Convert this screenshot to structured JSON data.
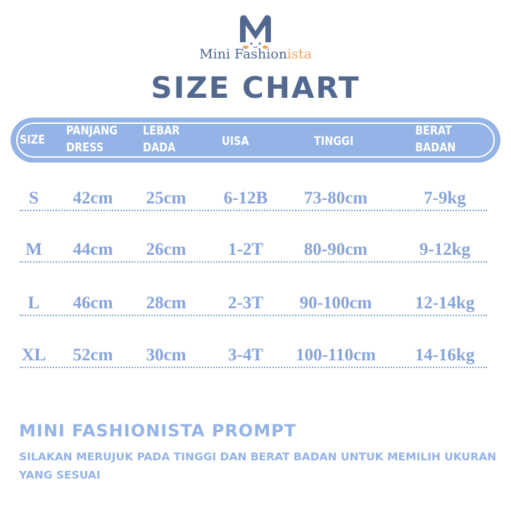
{
  "brand": {
    "name_main": "Mini Fashion",
    "name_accent": "ista",
    "colors": {
      "primary": "#4a6590",
      "accent": "#f0a35e",
      "chart": "#94b3e6"
    }
  },
  "title": "SIZE CHART",
  "header": {
    "columns": [
      {
        "line1": "SIZE",
        "line2": ""
      },
      {
        "line1": "PANJANG",
        "line2": "DRESS"
      },
      {
        "line1": "LEBAR",
        "line2": "DADA"
      },
      {
        "line1": "UISA",
        "line2": ""
      },
      {
        "line1": "TINGGI",
        "line2": ""
      },
      {
        "line1": "BERAT",
        "line2": "BADAN"
      }
    ]
  },
  "rows": [
    [
      "S",
      "42cm",
      "25cm",
      "6-12B",
      "73-80cm",
      "7-9kg"
    ],
    [
      "M",
      "44cm",
      "26cm",
      "1-2T",
      "80-90cm",
      "9-12kg"
    ],
    [
      "L",
      "46cm",
      "28cm",
      "2-3T",
      "90-100cm",
      "12-14kg"
    ],
    [
      "XL",
      "52cm",
      "30cm",
      "3-4T",
      "100-110cm",
      "14-16kg"
    ]
  ],
  "prompt": {
    "title": "MINI FASHIONISTA PROMPT",
    "text": "SILAKAN MERUJUK PADA TINGGI DAN BERAT BADAN UNTUK MEMILIH UKURAN YANG SESUAI"
  }
}
